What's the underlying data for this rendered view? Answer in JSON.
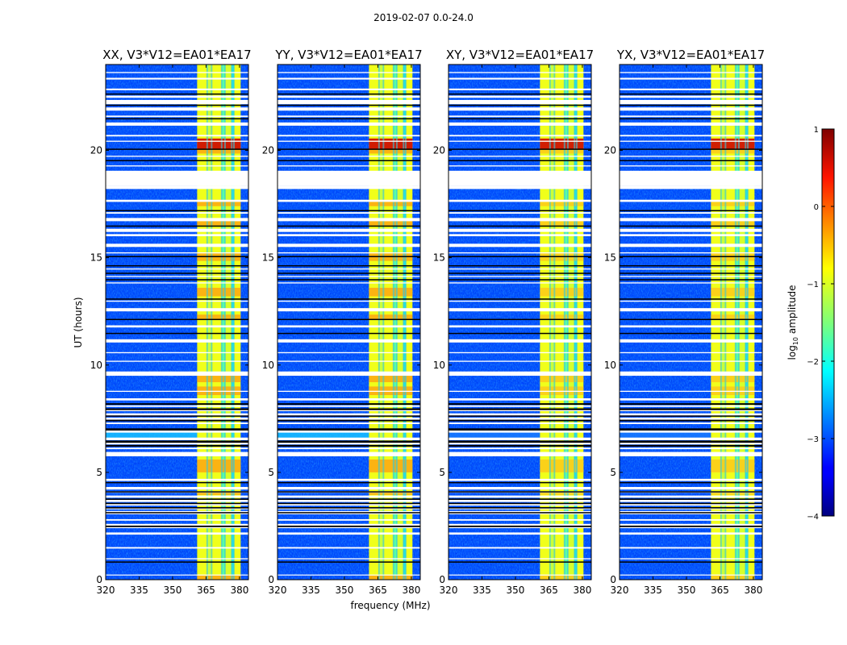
{
  "chart_data": {
    "type": "heatmap",
    "suptitle": "2019-02-07 0.0-24.0",
    "panels": [
      {
        "title": "XX, V3*V12=EA01*EA17"
      },
      {
        "title": "YY, V3*V12=EA01*EA17"
      },
      {
        "title": "XY, V3*V12=EA01*EA17"
      },
      {
        "title": "YX, V3*V12=EA01*EA17"
      }
    ],
    "xlabel": "frequency (MHz)",
    "ylabel": "UT (hours)",
    "xlim": [
      320,
      384
    ],
    "ylim": [
      0,
      24
    ],
    "xticks": [
      320,
      335,
      350,
      365,
      380
    ],
    "yticks": [
      0,
      5,
      10,
      15,
      20
    ],
    "colorbar": {
      "label": "log",
      "label_sub": "10",
      "label_rest": " amplitude",
      "range": [
        -4,
        1
      ],
      "ticks": [
        -4,
        -3,
        -2,
        -1,
        0,
        1
      ],
      "tick_labels": [
        "−4",
        "−3",
        "−2",
        "−1",
        "0",
        "1"
      ],
      "colormap": "jet"
    },
    "band_range_mhz": [
      361,
      380.5
    ],
    "band_channel_edges_mhz": [
      361,
      365.5,
      367.5,
      372,
      373.5,
      376.5,
      377.5,
      380.5
    ],
    "flagged_hours": [
      [
        0.2,
        0.24
      ],
      [
        0.95,
        1.0
      ],
      [
        1.45,
        1.52
      ],
      [
        2.1,
        2.2
      ],
      [
        2.4,
        2.6
      ],
      [
        2.75,
        2.82
      ],
      [
        3.05,
        3.2
      ],
      [
        3.28,
        3.36
      ],
      [
        3.45,
        3.55
      ],
      [
        3.62,
        3.72
      ],
      [
        3.82,
        3.92
      ],
      [
        4.05,
        4.12
      ],
      [
        4.2,
        4.32
      ],
      [
        4.6,
        4.7
      ],
      [
        5.75,
        5.95
      ],
      [
        6.08,
        6.15
      ],
      [
        6.3,
        6.42
      ],
      [
        6.5,
        6.62
      ],
      [
        6.85,
        6.95
      ],
      [
        7.25,
        7.32
      ],
      [
        7.45,
        7.55
      ],
      [
        7.65,
        7.75
      ],
      [
        7.85,
        7.95
      ],
      [
        8.05,
        8.12
      ],
      [
        8.35,
        8.45
      ],
      [
        8.75,
        8.8
      ],
      [
        9.5,
        9.7
      ],
      [
        10.15,
        10.2
      ],
      [
        10.55,
        10.6
      ],
      [
        11.05,
        11.2
      ],
      [
        11.75,
        11.85
      ],
      [
        12.5,
        12.65
      ],
      [
        12.95,
        13.0
      ],
      [
        13.8,
        13.85
      ],
      [
        14.1,
        14.15
      ],
      [
        14.45,
        14.5
      ],
      [
        15.2,
        15.25
      ],
      [
        15.5,
        15.65
      ],
      [
        16.0,
        16.1
      ],
      [
        16.2,
        16.35
      ],
      [
        16.7,
        16.85
      ],
      [
        17.05,
        17.12
      ],
      [
        17.6,
        17.7
      ],
      [
        18.2,
        18.35
      ],
      [
        18.35,
        19.05
      ],
      [
        19.25,
        19.3
      ],
      [
        19.7,
        19.75
      ],
      [
        20.4,
        20.45
      ],
      [
        20.65,
        20.72
      ],
      [
        21.15,
        21.3
      ],
      [
        21.55,
        21.62
      ],
      [
        21.85,
        22.0
      ],
      [
        22.15,
        22.35
      ],
      [
        22.45,
        22.55
      ],
      [
        22.8,
        22.88
      ],
      [
        23.3,
        23.38
      ],
      [
        23.6,
        23.65
      ]
    ],
    "black_hours": [
      [
        0.82,
        0.85
      ],
      [
        2.45,
        2.52
      ],
      [
        3.1,
        3.15
      ],
      [
        3.32,
        3.38
      ],
      [
        3.52,
        3.58
      ],
      [
        3.72,
        3.78
      ],
      [
        4.08,
        4.12
      ],
      [
        4.5,
        4.55
      ],
      [
        6.2,
        6.28
      ],
      [
        6.38,
        6.48
      ],
      [
        6.95,
        7.05
      ],
      [
        7.38,
        7.45
      ],
      [
        7.6,
        7.65
      ],
      [
        7.9,
        7.98
      ],
      [
        8.15,
        8.22
      ],
      [
        11.45,
        11.5
      ],
      [
        12.1,
        12.15
      ],
      [
        13.05,
        13.1
      ],
      [
        13.95,
        14.0
      ],
      [
        14.25,
        14.3
      ],
      [
        14.6,
        14.65
      ],
      [
        15.05,
        15.08
      ],
      [
        16.45,
        16.5
      ],
      [
        17.18,
        17.22
      ],
      [
        19.5,
        19.55
      ],
      [
        20.05,
        20.08
      ],
      [
        21.45,
        21.5
      ],
      [
        22.6,
        22.65
      ],
      [
        22.1,
        22.13
      ]
    ],
    "rfi_high_hours": [
      [
        19.85,
        20.55
      ],
      [
        14.85,
        15.25
      ],
      [
        13.2,
        13.6
      ],
      [
        12.15,
        12.35
      ],
      [
        9.2,
        9.55
      ],
      [
        8.6,
        9.0
      ],
      [
        5.0,
        5.6
      ],
      [
        3.95,
        4.05
      ],
      [
        0.0,
        0.2
      ],
      [
        17.4,
        17.7
      ],
      [
        16.5,
        16.7
      ]
    ],
    "hot_rfi_hours": [
      [
        20.05,
        20.55
      ]
    ],
    "background_log_amplitude": -3.0,
    "band_log_amplitude": -1.2,
    "cyan_noise_hours": [
      [
        6.5,
        6.95
      ]
    ]
  }
}
